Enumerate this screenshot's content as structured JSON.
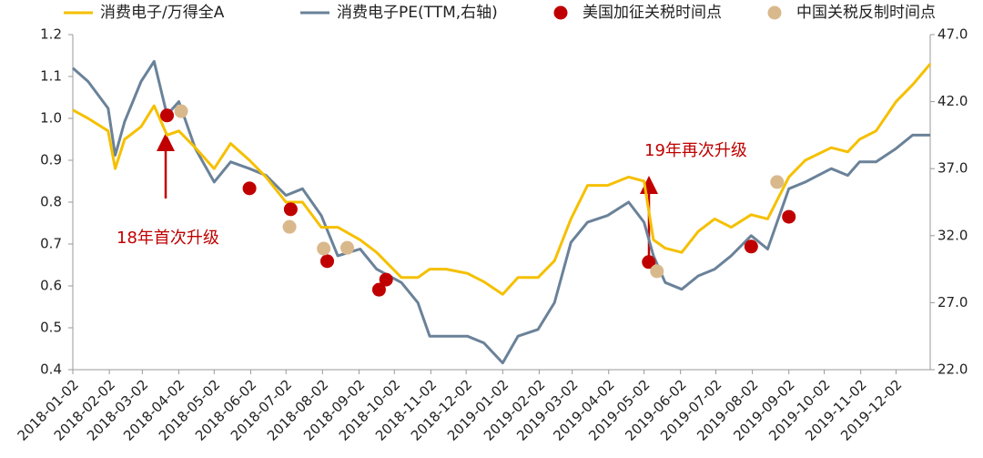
{
  "chart_data": {
    "type": "line",
    "annotations": [
      "18年首次升级",
      "19年再次升级"
    ],
    "xlim": [
      "2018-01-02",
      "2019-12-31"
    ],
    "xticks": [
      "2018-01-02",
      "2018-02-02",
      "2018-03-02",
      "2018-04-02",
      "2018-05-02",
      "2018-06-02",
      "2018-07-02",
      "2018-08-02",
      "2018-09-02",
      "2018-10-02",
      "2018-11-02",
      "2018-12-02",
      "2019-01-02",
      "2019-02-02",
      "2019-03-02",
      "2019-04-02",
      "2019-05-02",
      "2019-06-02",
      "2019-07-02",
      "2019-08-02",
      "2019-09-02",
      "2019-10-02",
      "2019-11-02",
      "2019-12-02"
    ],
    "ylim": [
      0.4,
      1.2
    ],
    "yticks": [
      0.4,
      0.5,
      0.6,
      0.7,
      0.8,
      0.9,
      {
        "value": 1,
        "label": "1.0"
      },
      1.1,
      1.2
    ],
    "y2lim": [
      22,
      47
    ],
    "y2ticks": [
      {
        "value": 22,
        "label": "22.0"
      },
      {
        "value": 27,
        "label": "27.0"
      },
      {
        "value": 32,
        "label": "32.0"
      },
      {
        "value": 37,
        "label": "37.0"
      },
      {
        "value": 42,
        "label": "42.0"
      },
      {
        "value": 47,
        "label": "47.0"
      }
    ],
    "x": [
      "2018-01-02",
      "2018-01-15",
      "2018-02-01",
      "2018-02-07",
      "2018-02-15",
      "2018-03-01",
      "2018-03-12",
      "2018-03-23",
      "2018-04-02",
      "2018-04-16",
      "2018-05-02",
      "2018-05-16",
      "2018-06-01",
      "2018-06-15",
      "2018-07-02",
      "2018-07-16",
      "2018-08-01",
      "2018-08-15",
      "2018-09-03",
      "2018-09-17",
      "2018-10-08",
      "2018-10-22",
      "2018-11-01",
      "2018-11-15",
      "2018-12-03",
      "2018-12-17",
      "2019-01-02",
      "2019-01-15",
      "2019-02-01",
      "2019-02-15",
      "2019-03-01",
      "2019-03-15",
      "2019-04-01",
      "2019-04-19",
      "2019-05-02",
      "2019-05-10",
      "2019-05-20",
      "2019-06-03",
      "2019-06-17",
      "2019-07-01",
      "2019-07-15",
      "2019-08-01",
      "2019-08-15",
      "2019-09-02",
      "2019-09-16",
      "2019-10-08",
      "2019-10-22",
      "2019-11-01",
      "2019-11-15",
      "2019-12-02",
      "2019-12-16",
      "2019-12-31"
    ],
    "series": [
      {
        "name": "消费电子/万得全A",
        "type": "line",
        "color": "#f5c000",
        "values": [
          1.02,
          1.0,
          0.97,
          0.88,
          0.95,
          0.98,
          1.03,
          0.96,
          0.97,
          0.93,
          0.88,
          0.94,
          0.9,
          0.86,
          0.8,
          0.8,
          0.74,
          0.74,
          0.71,
          0.68,
          0.62,
          0.62,
          0.64,
          0.64,
          0.63,
          0.61,
          0.58,
          0.62,
          0.62,
          0.66,
          0.76,
          0.84,
          0.84,
          0.86,
          0.85,
          0.71,
          0.69,
          0.68,
          0.73,
          0.76,
          0.74,
          0.77,
          0.76,
          0.86,
          0.9,
          0.93,
          0.92,
          0.95,
          0.97,
          1.04,
          1.08,
          1.13
        ]
      },
      {
        "name": "消费电子PE(TTM,右轴)",
        "type": "line",
        "axis": "y2",
        "color": "#6a8299",
        "values": [
          44.5,
          43.5,
          41.5,
          38.0,
          40.5,
          43.5,
          45.0,
          41.0,
          42.0,
          38.5,
          36.0,
          37.5,
          37.0,
          36.5,
          35.0,
          35.5,
          33.5,
          30.5,
          31.0,
          29.5,
          28.5,
          27.0,
          24.5,
          24.5,
          24.5,
          24.0,
          22.5,
          24.5,
          25.0,
          27.0,
          31.5,
          33.0,
          33.5,
          34.5,
          33.0,
          30.5,
          28.5,
          28.0,
          29.0,
          29.5,
          30.5,
          32.0,
          31.0,
          35.5,
          36.0,
          37.0,
          36.5,
          37.5,
          37.5,
          38.5,
          39.5,
          39.5
        ]
      },
      {
        "name": "美国加征关税时间点",
        "type": "scatter",
        "color": "#c00000",
        "x": [
          "2018-03-23",
          "2018-06-01",
          "2018-07-06",
          "2018-08-06",
          "2018-09-19",
          "2018-09-25",
          "2019-05-06",
          "2019-08-01",
          "2019-09-02"
        ],
        "values": [
          1.007,
          0.833,
          0.783,
          0.659,
          0.591,
          0.615,
          0.657,
          0.694,
          0.765
        ]
      },
      {
        "name": "中国关税反制时间点",
        "type": "scatter",
        "color": "#d9b98c",
        "x": [
          "2018-04-04",
          "2018-07-05",
          "2018-08-03",
          "2018-08-23",
          "2019-05-13",
          "2019-08-23"
        ],
        "values": [
          1.017,
          0.741,
          0.689,
          0.691,
          0.635,
          0.848
        ]
      }
    ]
  }
}
